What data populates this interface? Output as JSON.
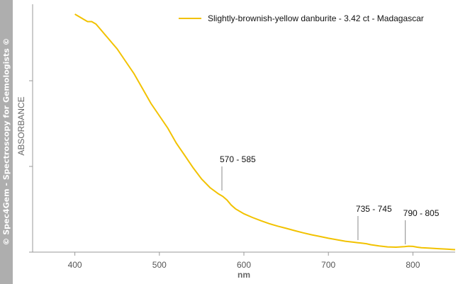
{
  "sidebar": {
    "text": "© Spec4Gem - Spectroscopy for Gemologists ©"
  },
  "colors": {
    "series": "#f2c200",
    "axis": "#999999",
    "annotation_line": "#8a8a8a"
  },
  "chart_data": {
    "type": "line",
    "xlabel": "nm",
    "ylabel": "ABSORBANCE",
    "xlim": [
      350,
      850
    ],
    "ylim": [
      0,
      1
    ],
    "x_ticks": [
      400,
      500,
      600,
      700,
      800
    ],
    "grid": false,
    "legend_position": "top-right",
    "series": [
      {
        "name": "Slightly-brownish-yellow danburite - 3.42 ct - Madagascar",
        "x": [
          400,
          405,
          410,
          415,
          420,
          425,
          430,
          435,
          440,
          445,
          450,
          460,
          470,
          480,
          490,
          500,
          510,
          520,
          530,
          540,
          550,
          560,
          570,
          575,
          580,
          585,
          590,
          600,
          610,
          620,
          630,
          640,
          650,
          660,
          670,
          680,
          690,
          700,
          710,
          720,
          730,
          735,
          740,
          745,
          750,
          760,
          770,
          780,
          790,
          795,
          800,
          805,
          810,
          820,
          830,
          840,
          850
        ],
        "y": [
          0.96,
          0.95,
          0.94,
          0.93,
          0.93,
          0.92,
          0.9,
          0.88,
          0.86,
          0.84,
          0.82,
          0.77,
          0.72,
          0.66,
          0.6,
          0.55,
          0.5,
          0.44,
          0.39,
          0.34,
          0.295,
          0.26,
          0.235,
          0.225,
          0.21,
          0.19,
          0.175,
          0.155,
          0.14,
          0.127,
          0.115,
          0.105,
          0.096,
          0.087,
          0.078,
          0.07,
          0.063,
          0.056,
          0.05,
          0.044,
          0.04,
          0.038,
          0.036,
          0.034,
          0.03,
          0.025,
          0.021,
          0.02,
          0.022,
          0.024,
          0.023,
          0.02,
          0.018,
          0.016,
          0.014,
          0.012,
          0.01
        ]
      }
    ],
    "annotations": [
      {
        "label": "570 - 585",
        "x": 574,
        "y": 0.24
      },
      {
        "label": "735 - 745",
        "x": 735,
        "y": 0.04
      },
      {
        "label": "790 - 805",
        "x": 791,
        "y": 0.023
      }
    ]
  }
}
